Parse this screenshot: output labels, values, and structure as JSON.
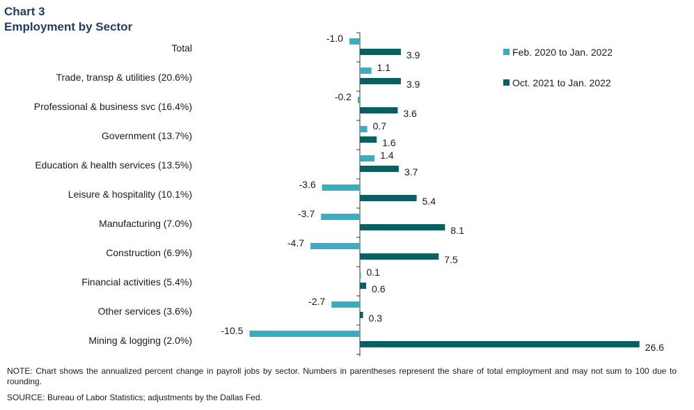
{
  "header": {
    "title_line1": "Chart 3",
    "title_line2": "Employment by Sector"
  },
  "colors": {
    "series1": "#3cadbc",
    "series2": "#0b5f63",
    "axis": "#333333",
    "title": "#1f3f6a"
  },
  "chart_data": {
    "type": "bar",
    "orientation": "horizontal",
    "categories": [
      "Total",
      "Trade, transp & utilities (20.6%)",
      "Professional & business svc (16.4%)",
      "Government (13.7%)",
      "Education & health services (13.5%)",
      "Leisure & hospitality (10.1%)",
      "Manufacturing (7.0%)",
      "Construction (6.9%)",
      "Financial activities (5.4%)",
      "Other services (3.6%)",
      "Mining & logging (2.0%)"
    ],
    "series": [
      {
        "name": "Feb. 2020 to Jan. 2022",
        "values": [
          -1.0,
          1.1,
          -0.2,
          0.7,
          1.4,
          -3.6,
          -3.7,
          -4.7,
          0.1,
          -2.7,
          -10.5
        ],
        "labels": [
          "-1.0",
          "1.1",
          "-0.2",
          "0.7",
          "1.4",
          "-3.6",
          "-3.7",
          "-4.7",
          "0.1",
          "-2.7",
          "-10.5"
        ]
      },
      {
        "name": "Oct. 2021 to Jan. 2022",
        "values": [
          3.9,
          3.9,
          3.6,
          1.6,
          3.7,
          5.4,
          8.1,
          7.5,
          0.6,
          0.3,
          26.6
        ],
        "labels": [
          "3.9",
          "3.9",
          "3.6",
          "1.6",
          "3.7",
          "5.4",
          "8.1",
          "7.5",
          "0.6",
          "0.3",
          "26.6"
        ]
      }
    ],
    "legend_position": "top-right",
    "xlim": [
      -10.5,
      26.6
    ],
    "grid": false
  },
  "footer": {
    "note": "NOTE: Chart shows the annualized percent change in payroll jobs by sector. Numbers in parentheses represent the share of total employment and may not sum to 100 due to rounding.",
    "source": "SOURCE: Bureau of Labor Statistics; adjustments by the Dallas Fed."
  }
}
